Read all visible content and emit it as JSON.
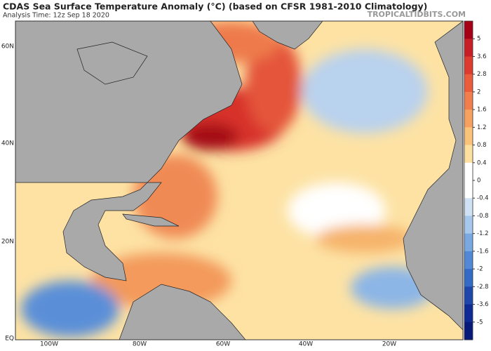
{
  "header": {
    "title": "CDAS Sea Surface Temperature Anomaly (°C) (based on CFSR 1981-2010 Climatology)",
    "subtitle": "Analysis Time: 12z Sep 18 2020",
    "source": "TROPICALTIDBITS.COM"
  },
  "map": {
    "lat_labels": [
      "60N",
      "40N",
      "20N",
      "EQ"
    ],
    "lon_labels": [
      "100W",
      "80W",
      "60W",
      "40W",
      "20W"
    ]
  },
  "colorbar": {
    "ticks": [
      5,
      3.6,
      2.8,
      2,
      1.6,
      1.2,
      0.8,
      0.4,
      0,
      -0.4,
      -0.8,
      -1.2,
      -1.6,
      -2,
      -2.8,
      -3.6,
      -5
    ]
  }
}
